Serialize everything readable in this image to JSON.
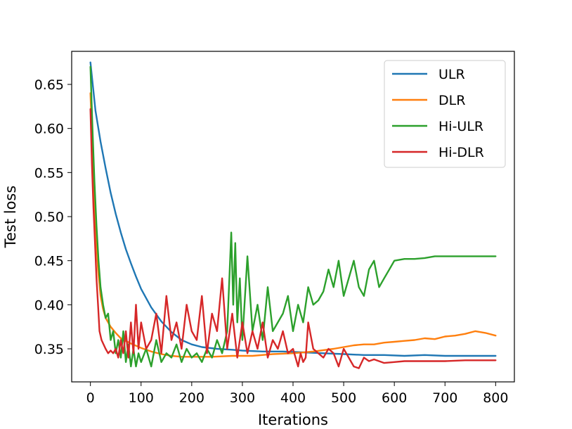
{
  "chart_data": {
    "type": "line",
    "xlabel": "Iterations",
    "ylabel": "Test loss",
    "xlim": [
      -37,
      837
    ],
    "ylim": [
      0.3125,
      0.6875
    ],
    "xticks": [
      0,
      100,
      200,
      300,
      400,
      500,
      600,
      700,
      800
    ],
    "yticks": [
      0.35,
      0.4,
      0.45,
      0.5,
      0.55,
      0.6,
      0.65
    ],
    "ytick_labels": [
      "0.35",
      "0.40",
      "0.45",
      "0.50",
      "0.55",
      "0.60",
      "0.65"
    ],
    "grid": false,
    "legend_position": "top-right",
    "series": [
      {
        "name": "ULR",
        "color": "#1f77b4",
        "x": [
          0,
          10,
          20,
          30,
          40,
          50,
          60,
          70,
          80,
          90,
          100,
          120,
          140,
          160,
          180,
          200,
          220,
          250,
          280,
          300,
          340,
          380,
          420,
          460,
          500,
          540,
          580,
          620,
          660,
          700,
          740,
          780,
          800
        ],
        "y": [
          0.675,
          0.62,
          0.585,
          0.555,
          0.527,
          0.503,
          0.482,
          0.463,
          0.447,
          0.432,
          0.418,
          0.397,
          0.381,
          0.369,
          0.36,
          0.355,
          0.352,
          0.35,
          0.349,
          0.348,
          0.347,
          0.347,
          0.346,
          0.345,
          0.344,
          0.343,
          0.343,
          0.342,
          0.343,
          0.342,
          0.342,
          0.342,
          0.342
        ]
      },
      {
        "name": "DLR",
        "color": "#ff7f0e",
        "x": [
          0,
          5,
          10,
          15,
          20,
          25,
          30,
          40,
          50,
          60,
          80,
          100,
          120,
          140,
          160,
          180,
          200,
          240,
          280,
          320,
          360,
          400,
          440,
          480,
          500,
          520,
          540,
          560,
          580,
          600,
          620,
          640,
          660,
          680,
          700,
          720,
          740,
          760,
          780,
          800
        ],
        "y": [
          0.64,
          0.56,
          0.49,
          0.44,
          0.41,
          0.395,
          0.385,
          0.375,
          0.368,
          0.362,
          0.356,
          0.351,
          0.347,
          0.344,
          0.342,
          0.341,
          0.341,
          0.341,
          0.342,
          0.342,
          0.344,
          0.345,
          0.347,
          0.35,
          0.352,
          0.354,
          0.355,
          0.355,
          0.357,
          0.358,
          0.359,
          0.36,
          0.362,
          0.361,
          0.364,
          0.365,
          0.367,
          0.37,
          0.368,
          0.365
        ]
      },
      {
        "name": "Hi-ULR",
        "color": "#2ca02c",
        "x": [
          0,
          4,
          8,
          12,
          16,
          20,
          25,
          30,
          35,
          40,
          45,
          50,
          55,
          60,
          65,
          70,
          75,
          80,
          85,
          90,
          95,
          100,
          110,
          120,
          130,
          140,
          150,
          160,
          170,
          180,
          190,
          200,
          210,
          220,
          230,
          240,
          250,
          260,
          270,
          278,
          282,
          286,
          290,
          295,
          300,
          310,
          320,
          330,
          340,
          350,
          360,
          370,
          380,
          390,
          400,
          410,
          420,
          430,
          440,
          450,
          460,
          470,
          480,
          490,
          500,
          510,
          520,
          530,
          540,
          550,
          560,
          570,
          580,
          590,
          600,
          620,
          640,
          660,
          680,
          700,
          740,
          800
        ],
        "y": [
          0.67,
          0.6,
          0.54,
          0.49,
          0.45,
          0.42,
          0.4,
          0.385,
          0.39,
          0.36,
          0.37,
          0.345,
          0.36,
          0.34,
          0.37,
          0.335,
          0.355,
          0.33,
          0.35,
          0.33,
          0.345,
          0.335,
          0.35,
          0.33,
          0.36,
          0.335,
          0.345,
          0.34,
          0.355,
          0.335,
          0.35,
          0.34,
          0.345,
          0.335,
          0.35,
          0.34,
          0.36,
          0.345,
          0.37,
          0.482,
          0.4,
          0.47,
          0.38,
          0.43,
          0.36,
          0.455,
          0.37,
          0.4,
          0.36,
          0.42,
          0.37,
          0.38,
          0.39,
          0.41,
          0.37,
          0.4,
          0.38,
          0.42,
          0.4,
          0.405,
          0.415,
          0.44,
          0.42,
          0.45,
          0.41,
          0.43,
          0.45,
          0.42,
          0.41,
          0.44,
          0.45,
          0.42,
          0.43,
          0.44,
          0.45,
          0.452,
          0.452,
          0.453,
          0.455,
          0.455,
          0.455,
          0.455
        ]
      },
      {
        "name": "Hi-DLR",
        "color": "#d62728",
        "x": [
          0,
          3,
          6,
          9,
          12,
          15,
          18,
          22,
          26,
          30,
          35,
          40,
          45,
          50,
          55,
          60,
          65,
          70,
          75,
          80,
          85,
          90,
          95,
          100,
          110,
          120,
          130,
          140,
          150,
          160,
          170,
          180,
          190,
          200,
          210,
          220,
          230,
          240,
          250,
          260,
          270,
          280,
          290,
          300,
          310,
          320,
          330,
          340,
          350,
          360,
          370,
          380,
          390,
          400,
          405,
          410,
          415,
          420,
          425,
          430,
          440,
          450,
          460,
          470,
          480,
          490,
          500,
          510,
          520,
          530,
          540,
          550,
          560,
          580,
          600,
          620,
          640,
          660,
          700,
          740,
          800
        ],
        "y": [
          0.622,
          0.56,
          0.51,
          0.47,
          0.43,
          0.4,
          0.37,
          0.36,
          0.355,
          0.35,
          0.345,
          0.348,
          0.345,
          0.35,
          0.34,
          0.36,
          0.345,
          0.37,
          0.34,
          0.38,
          0.345,
          0.4,
          0.35,
          0.38,
          0.35,
          0.36,
          0.39,
          0.345,
          0.41,
          0.36,
          0.38,
          0.35,
          0.4,
          0.37,
          0.36,
          0.41,
          0.345,
          0.39,
          0.37,
          0.43,
          0.35,
          0.39,
          0.34,
          0.38,
          0.345,
          0.37,
          0.35,
          0.38,
          0.34,
          0.36,
          0.35,
          0.37,
          0.345,
          0.35,
          0.34,
          0.33,
          0.345,
          0.335,
          0.34,
          0.38,
          0.35,
          0.345,
          0.34,
          0.35,
          0.345,
          0.33,
          0.35,
          0.34,
          0.33,
          0.328,
          0.34,
          0.336,
          0.338,
          0.334,
          0.335,
          0.336,
          0.336,
          0.336,
          0.336,
          0.337,
          0.337
        ]
      }
    ]
  }
}
